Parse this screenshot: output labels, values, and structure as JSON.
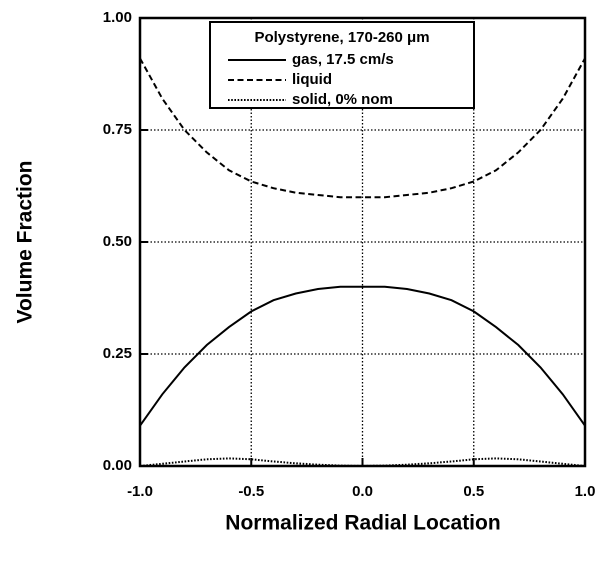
{
  "chart_data": {
    "type": "line",
    "xlabel": "Normalized Radial Location",
    "ylabel": "Volume Fraction",
    "legend_title": "Polystyrene, 170-260 μm",
    "x": [
      -1.0,
      -0.9,
      -0.8,
      -0.7,
      -0.6,
      -0.5,
      -0.4,
      -0.3,
      -0.2,
      -0.1,
      0.0,
      0.1,
      0.2,
      0.3,
      0.4,
      0.5,
      0.6,
      0.7,
      0.8,
      0.9,
      1.0
    ],
    "series": [
      {
        "name": "gas, 17.5 cm/s",
        "color": "#000000",
        "dash": "solid",
        "values": [
          0.09,
          0.16,
          0.22,
          0.27,
          0.31,
          0.345,
          0.37,
          0.385,
          0.395,
          0.4,
          0.4,
          0.4,
          0.395,
          0.385,
          0.37,
          0.345,
          0.31,
          0.27,
          0.22,
          0.16,
          0.09
        ]
      },
      {
        "name": "liquid",
        "color": "#000000",
        "dash": "dashed",
        "values": [
          0.91,
          0.82,
          0.75,
          0.7,
          0.66,
          0.635,
          0.62,
          0.61,
          0.605,
          0.6,
          0.6,
          0.6,
          0.605,
          0.61,
          0.62,
          0.635,
          0.66,
          0.7,
          0.75,
          0.82,
          0.91
        ]
      },
      {
        "name": "solid, 0% nom",
        "color": "#000000",
        "dash": "dotted",
        "values": [
          0.0,
          0.005,
          0.01,
          0.015,
          0.017,
          0.015,
          0.01,
          0.006,
          0.003,
          0.001,
          0.0,
          0.001,
          0.003,
          0.006,
          0.01,
          0.015,
          0.017,
          0.015,
          0.01,
          0.005,
          0.0
        ]
      }
    ],
    "xlim": [
      -1.0,
      1.0
    ],
    "ylim": [
      0.0,
      1.0
    ],
    "xticks": [
      {
        "value": -1.0,
        "label": "-1.0"
      },
      {
        "value": -0.5,
        "label": "-0.5"
      },
      {
        "value": 0.0,
        "label": "0.0"
      },
      {
        "value": 0.5,
        "label": "0.5"
      },
      {
        "value": 1.0,
        "label": "1.0"
      }
    ],
    "yticks": [
      {
        "value": 0.0,
        "label": "0.00"
      },
      {
        "value": 0.25,
        "label": "0.25"
      },
      {
        "value": 0.5,
        "label": "0.50"
      },
      {
        "value": 0.75,
        "label": "0.75"
      },
      {
        "value": 1.0,
        "label": "1.00"
      }
    ],
    "grid": true,
    "legend": "upper center"
  }
}
